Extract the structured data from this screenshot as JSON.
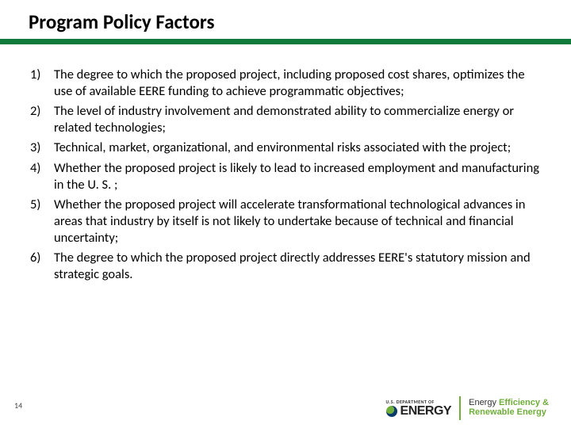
{
  "colors": {
    "rule_green": "#0f7a3a",
    "accent_green": "#6fae3a",
    "text": "#000000",
    "background": "#ffffff"
  },
  "header": {
    "title": "Program Policy Factors"
  },
  "list": {
    "items": [
      "The degree to which the proposed project, including proposed cost shares, optimizes the use of available EERE funding to achieve programmatic objectives;",
      "The level of industry involvement and demonstrated ability to commercialize energy or related technologies;",
      "Technical, market, organizational, and environmental risks associated with the project;",
      "Whether the proposed project is likely to lead to increased employment and manufacturing in the U. S. ;",
      "Whether the proposed project will accelerate transformational technological advances in areas that industry by itself is not likely to undertake because of technical and financial uncertainty;",
      "The degree to which the proposed project directly addresses EERE's statutory mission and strategic goals."
    ]
  },
  "page_number": "14",
  "footer": {
    "doe_top": "U.S. DEPARTMENT OF",
    "doe_word": "ENERGY",
    "eere_line1_plain": "Energy ",
    "eere_line1_accent": "Efficiency &",
    "eere_line2": "Renewable Energy"
  }
}
